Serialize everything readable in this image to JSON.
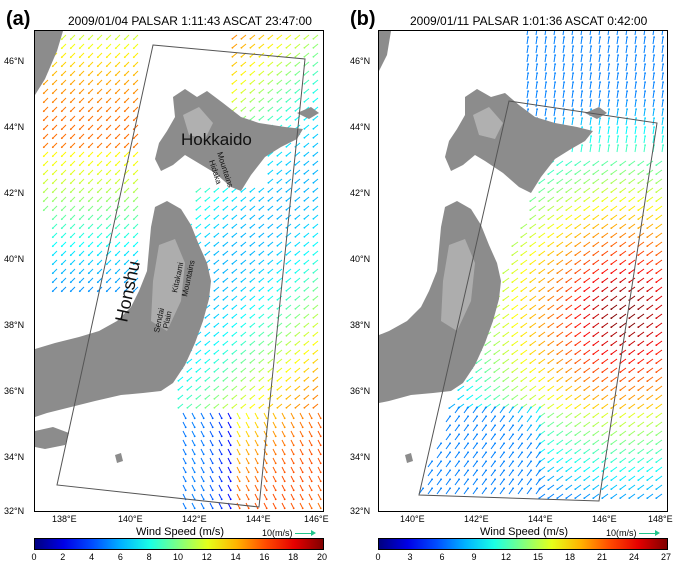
{
  "panel_a": {
    "letter": "(a)",
    "title": "2009/01/04 PALSAR 1:11:43 ASCAT 23:47:00",
    "lat_labels": [
      "46°N",
      "44°N",
      "42°N",
      "40°N",
      "38°N",
      "36°N",
      "34°N",
      "32°N"
    ],
    "lon_labels": [
      "138°E",
      "140°E",
      "142°E",
      "144°E",
      "146°E"
    ],
    "place_labels": {
      "hokkaido": "Hokkaido",
      "hidaka": "Hidaka",
      "mountains1": "Mountains",
      "honshu": "Honshu",
      "kitakami": "Kitakami",
      "mountains2": "Mountains",
      "sendai": "Sendai",
      "plain": "Plain"
    },
    "colorbar": {
      "title": "Wind Speed (m/s)",
      "ref": "10(m/s)",
      "min": 0,
      "max": 20,
      "ticks": [
        "0",
        "2",
        "4",
        "6",
        "8",
        "10",
        "12",
        "14",
        "16",
        "18",
        "20"
      ]
    }
  },
  "panel_b": {
    "letter": "(b)",
    "title": "2009/01/11 PALSAR 1:01:36 ASCAT 0:42:00",
    "lat_labels": [
      "46°N",
      "44°N",
      "42°N",
      "40°N",
      "38°N",
      "36°N",
      "34°N",
      "32°N"
    ],
    "lon_labels": [
      "140°E",
      "142°E",
      "144°E",
      "146°E",
      "148°E"
    ],
    "colorbar": {
      "title": "Wind Speed (m/s)",
      "ref": "10(m/s)",
      "min": 0,
      "max": 27,
      "ticks": [
        "0",
        "3",
        "6",
        "9",
        "12",
        "15",
        "18",
        "21",
        "24",
        "27"
      ]
    }
  },
  "colors": {
    "land": "#8c8c8c",
    "land_high": "#cfcfcf",
    "frame": "#555555"
  }
}
